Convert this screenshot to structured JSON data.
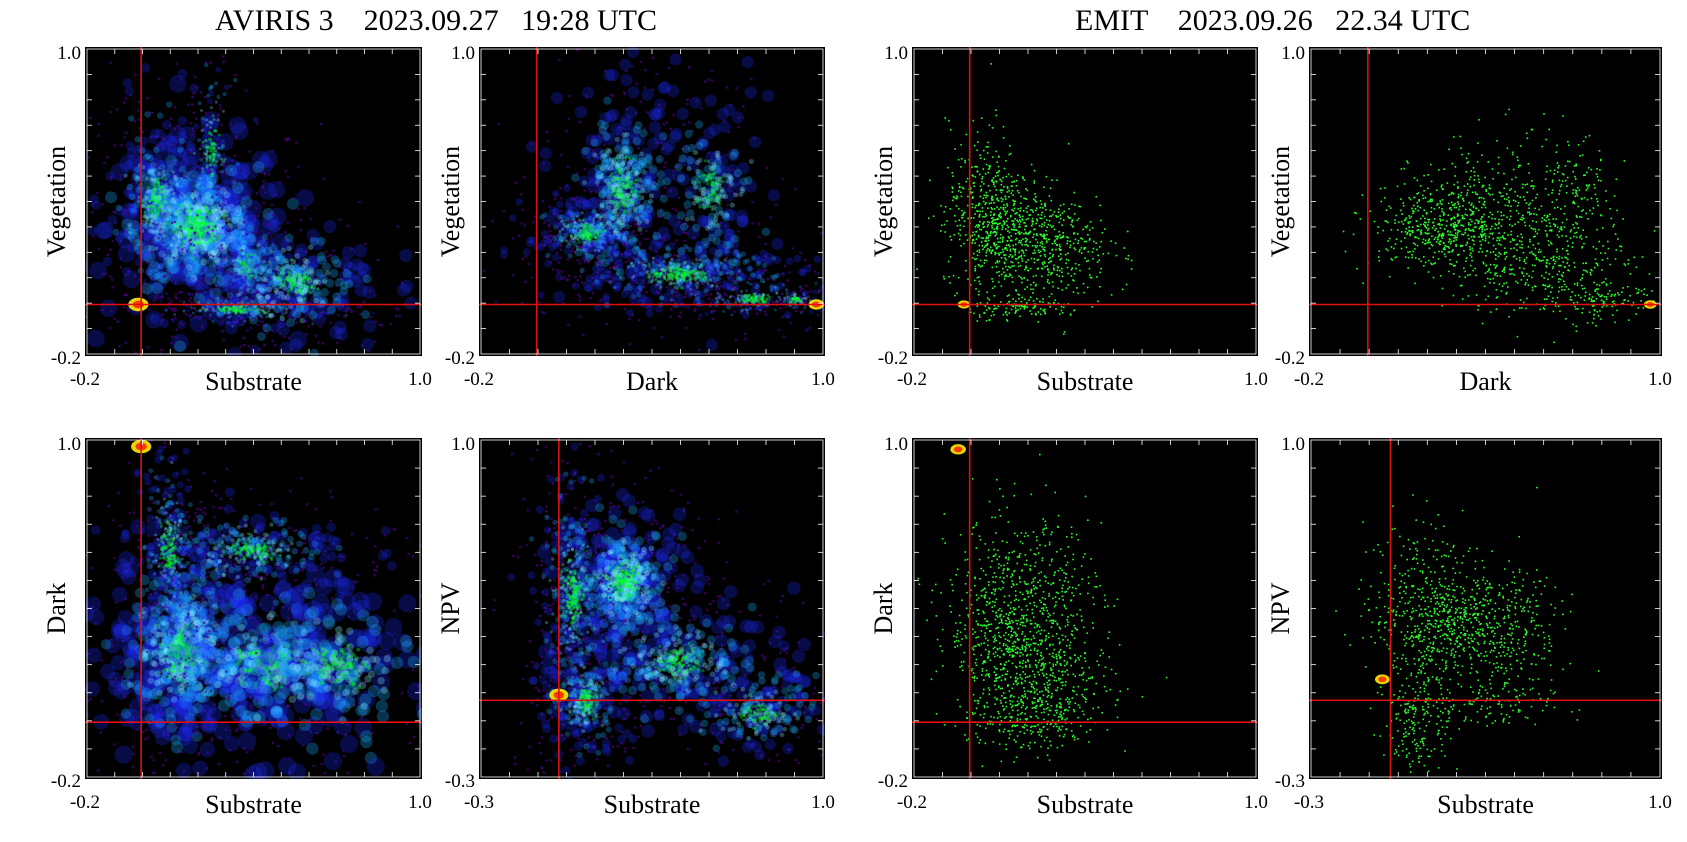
{
  "titles": {
    "left": "AVIRIS 3    2023.09.27   19:28 UTC",
    "right": "EMIT    2023.09.26   22.34 UTC"
  },
  "colors": {
    "background": "#000000",
    "crosshair": "#e01010",
    "aviris_scale": [
      "#4b0082",
      "#1e2cff",
      "#19a8ff",
      "#7df0ff",
      "#00ff2a"
    ],
    "emit_point": "#2bff2b",
    "hotspot": "#ff3a00"
  },
  "chart_data": [
    {
      "id": "a1",
      "type": "scatter",
      "group": "AVIRIS 3",
      "row": 1,
      "col": 1,
      "xlabel": "Substrate",
      "ylabel": "Vegetation",
      "xlim": [
        -0.2,
        1.0
      ],
      "ylim": [
        -0.2,
        1.0
      ],
      "x_tick_labels": [
        "-0.2",
        "1.0"
      ],
      "y_tick_labels": [
        "-0.2",
        "1.0"
      ],
      "crosshair": {
        "x": 0.0,
        "y": 0.0
      },
      "clusters": [
        {
          "x": 0.2,
          "y": 0.3,
          "sx": 0.15,
          "sy": 0.16,
          "n": 260
        },
        {
          "x": 0.05,
          "y": 0.4,
          "sx": 0.08,
          "sy": 0.18,
          "n": 140
        },
        {
          "x": 0.38,
          "y": 0.15,
          "sx": 0.08,
          "sy": 0.12,
          "n": 90
        },
        {
          "x": 0.35,
          "y": -0.02,
          "sx": 0.16,
          "sy": 0.03,
          "n": 120
        },
        {
          "x": 0.55,
          "y": 0.08,
          "sx": 0.15,
          "sy": 0.12,
          "n": 120
        },
        {
          "x": 0.25,
          "y": 0.6,
          "sx": 0.05,
          "sy": 0.18,
          "n": 60
        }
      ],
      "hotspots": [
        {
          "x": -0.01,
          "y": 0.0,
          "r": 0.02
        }
      ]
    },
    {
      "id": "a2",
      "type": "scatter",
      "group": "AVIRIS 3",
      "row": 1,
      "col": 2,
      "xlabel": "Dark",
      "ylabel": "Vegetation",
      "xlim": [
        -0.2,
        1.0
      ],
      "ylim": [
        -0.2,
        1.0
      ],
      "x_tick_labels": [
        "-0.2",
        "1.0"
      ],
      "y_tick_labels": [
        "-0.2",
        "1.0"
      ],
      "crosshair": {
        "x": 0.0,
        "y": 0.0
      },
      "clusters": [
        {
          "x": 0.18,
          "y": 0.28,
          "sx": 0.1,
          "sy": 0.07,
          "n": 150
        },
        {
          "x": 0.5,
          "y": 0.12,
          "sx": 0.22,
          "sy": 0.07,
          "n": 190
        },
        {
          "x": 0.3,
          "y": 0.45,
          "sx": 0.1,
          "sy": 0.2,
          "n": 170
        },
        {
          "x": 0.6,
          "y": 0.45,
          "sx": 0.1,
          "sy": 0.2,
          "n": 90
        },
        {
          "x": 0.75,
          "y": 0.02,
          "sx": 0.12,
          "sy": 0.04,
          "n": 70
        },
        {
          "x": 0.9,
          "y": 0.02,
          "sx": 0.05,
          "sy": 0.02,
          "n": 30
        }
      ],
      "hotspots": [
        {
          "x": 0.97,
          "y": 0.0,
          "r": 0.015
        }
      ]
    },
    {
      "id": "a3",
      "type": "scatter",
      "group": "AVIRIS 3",
      "row": 2,
      "col": 1,
      "xlabel": "Substrate",
      "ylabel": "Dark",
      "xlim": [
        -0.2,
        1.0
      ],
      "ylim": [
        -0.2,
        1.0
      ],
      "x_tick_labels": [
        "-0.2",
        "1.0"
      ],
      "y_tick_labels": [
        "-0.2",
        "1.0"
      ],
      "crosshair": {
        "x": 0.0,
        "y": 0.0
      },
      "clusters": [
        {
          "x": 0.15,
          "y": 0.25,
          "sx": 0.13,
          "sy": 0.18,
          "n": 280
        },
        {
          "x": 0.1,
          "y": 0.6,
          "sx": 0.06,
          "sy": 0.2,
          "n": 140
        },
        {
          "x": 0.4,
          "y": 0.6,
          "sx": 0.18,
          "sy": 0.08,
          "n": 130
        },
        {
          "x": 0.45,
          "y": 0.2,
          "sx": 0.2,
          "sy": 0.15,
          "n": 160
        },
        {
          "x": 0.7,
          "y": 0.2,
          "sx": 0.2,
          "sy": 0.15,
          "n": 100
        }
      ],
      "hotspots": [
        {
          "x": 0.0,
          "y": 0.97,
          "r": 0.02
        }
      ]
    },
    {
      "id": "a4",
      "type": "scatter",
      "group": "AVIRIS 3",
      "row": 2,
      "col": 2,
      "xlabel": "Substrate",
      "ylabel": "NPV",
      "xlim": [
        -0.3,
        1.0
      ],
      "ylim": [
        -0.3,
        1.0
      ],
      "x_tick_labels": [
        "-0.3",
        "1.0"
      ],
      "y_tick_labels": [
        "-0.3",
        "1.0"
      ],
      "crosshair": {
        "x": 0.0,
        "y": 0.0
      },
      "clusters": [
        {
          "x": 0.25,
          "y": 0.45,
          "sx": 0.12,
          "sy": 0.14,
          "n": 220
        },
        {
          "x": 0.05,
          "y": 0.4,
          "sx": 0.07,
          "sy": 0.25,
          "n": 170
        },
        {
          "x": 0.1,
          "y": 0.0,
          "sx": 0.08,
          "sy": 0.12,
          "n": 120
        },
        {
          "x": 0.45,
          "y": 0.15,
          "sx": 0.2,
          "sy": 0.12,
          "n": 140
        },
        {
          "x": 0.75,
          "y": -0.05,
          "sx": 0.15,
          "sy": 0.1,
          "n": 90
        }
      ],
      "hotspots": [
        {
          "x": 0.0,
          "y": 0.02,
          "r": 0.02
        }
      ]
    },
    {
      "id": "e1",
      "type": "scatter",
      "group": "EMIT",
      "row": 1,
      "col": 1,
      "xlabel": "Substrate",
      "ylabel": "Vegetation",
      "xlim": [
        -0.2,
        1.0
      ],
      "ylim": [
        -0.2,
        1.0
      ],
      "x_tick_labels": [
        "-0.2",
        "1.0"
      ],
      "y_tick_labels": [
        "-0.2",
        "1.0"
      ],
      "crosshair": {
        "x": 0.0,
        "y": 0.0
      },
      "clusters": [
        {
          "x": 0.15,
          "y": 0.3,
          "sx": 0.12,
          "sy": 0.12,
          "n": 500
        },
        {
          "x": 0.05,
          "y": 0.4,
          "sx": 0.06,
          "sy": 0.15,
          "n": 250
        },
        {
          "x": 0.25,
          "y": 0.2,
          "sx": 0.12,
          "sy": 0.1,
          "n": 300
        },
        {
          "x": 0.2,
          "y": -0.01,
          "sx": 0.1,
          "sy": 0.02,
          "n": 120
        }
      ],
      "hotspots": [
        {
          "x": -0.02,
          "y": 0.0,
          "r": 0.012
        }
      ]
    },
    {
      "id": "e2",
      "type": "scatter",
      "group": "EMIT",
      "row": 1,
      "col": 2,
      "xlabel": "Dark",
      "ylabel": "Vegetation",
      "xlim": [
        -0.2,
        1.0
      ],
      "ylim": [
        -0.2,
        1.0
      ],
      "x_tick_labels": [
        "-0.2",
        "1.0"
      ],
      "y_tick_labels": [
        "-0.2",
        "1.0"
      ],
      "crosshair": {
        "x": 0.0,
        "y": 0.0
      },
      "clusters": [
        {
          "x": 0.25,
          "y": 0.3,
          "sx": 0.12,
          "sy": 0.08,
          "n": 450
        },
        {
          "x": 0.45,
          "y": 0.35,
          "sx": 0.15,
          "sy": 0.15,
          "n": 400
        },
        {
          "x": 0.6,
          "y": 0.15,
          "sx": 0.15,
          "sy": 0.1,
          "n": 300
        },
        {
          "x": 0.7,
          "y": 0.4,
          "sx": 0.07,
          "sy": 0.12,
          "n": 120
        },
        {
          "x": 0.8,
          "y": 0.02,
          "sx": 0.08,
          "sy": 0.03,
          "n": 100
        }
      ],
      "hotspots": [
        {
          "x": 0.96,
          "y": 0.0,
          "r": 0.012
        }
      ]
    },
    {
      "id": "e3",
      "type": "scatter",
      "group": "EMIT",
      "row": 2,
      "col": 1,
      "xlabel": "Substrate",
      "ylabel": "Dark",
      "xlim": [
        -0.2,
        1.0
      ],
      "ylim": [
        -0.2,
        1.0
      ],
      "x_tick_labels": [
        "-0.2",
        "1.0"
      ],
      "y_tick_labels": [
        "-0.2",
        "1.0"
      ],
      "crosshair": {
        "x": 0.0,
        "y": 0.0
      },
      "clusters": [
        {
          "x": 0.12,
          "y": 0.35,
          "sx": 0.1,
          "sy": 0.18,
          "n": 600
        },
        {
          "x": 0.25,
          "y": 0.15,
          "sx": 0.12,
          "sy": 0.12,
          "n": 400
        },
        {
          "x": 0.3,
          "y": 0.45,
          "sx": 0.08,
          "sy": 0.15,
          "n": 200
        },
        {
          "x": 0.2,
          "y": 0.02,
          "sx": 0.12,
          "sy": 0.06,
          "n": 150
        }
      ],
      "hotspots": [
        {
          "x": -0.04,
          "y": 0.96,
          "r": 0.015
        }
      ]
    },
    {
      "id": "e4",
      "type": "scatter",
      "group": "EMIT",
      "row": 2,
      "col": 2,
      "xlabel": "Substrate",
      "ylabel": "NPV",
      "xlim": [
        -0.3,
        1.0
      ],
      "ylim": [
        -0.3,
        1.0
      ],
      "x_tick_labels": [
        "-0.3",
        "1.0"
      ],
      "y_tick_labels": [
        "-0.3",
        "1.0"
      ],
      "crosshair": {
        "x": 0.0,
        "y": 0.0
      },
      "clusters": [
        {
          "x": 0.25,
          "y": 0.3,
          "sx": 0.15,
          "sy": 0.12,
          "n": 500
        },
        {
          "x": 0.1,
          "y": 0.4,
          "sx": 0.08,
          "sy": 0.15,
          "n": 200
        },
        {
          "x": 0.1,
          "y": -0.05,
          "sx": 0.06,
          "sy": 0.12,
          "n": 200
        },
        {
          "x": 0.4,
          "y": 0.25,
          "sx": 0.12,
          "sy": 0.1,
          "n": 200
        },
        {
          "x": 0.35,
          "y": -0.02,
          "sx": 0.12,
          "sy": 0.05,
          "n": 120
        }
      ],
      "hotspots": [
        {
          "x": -0.03,
          "y": 0.08,
          "r": 0.015
        }
      ]
    }
  ]
}
